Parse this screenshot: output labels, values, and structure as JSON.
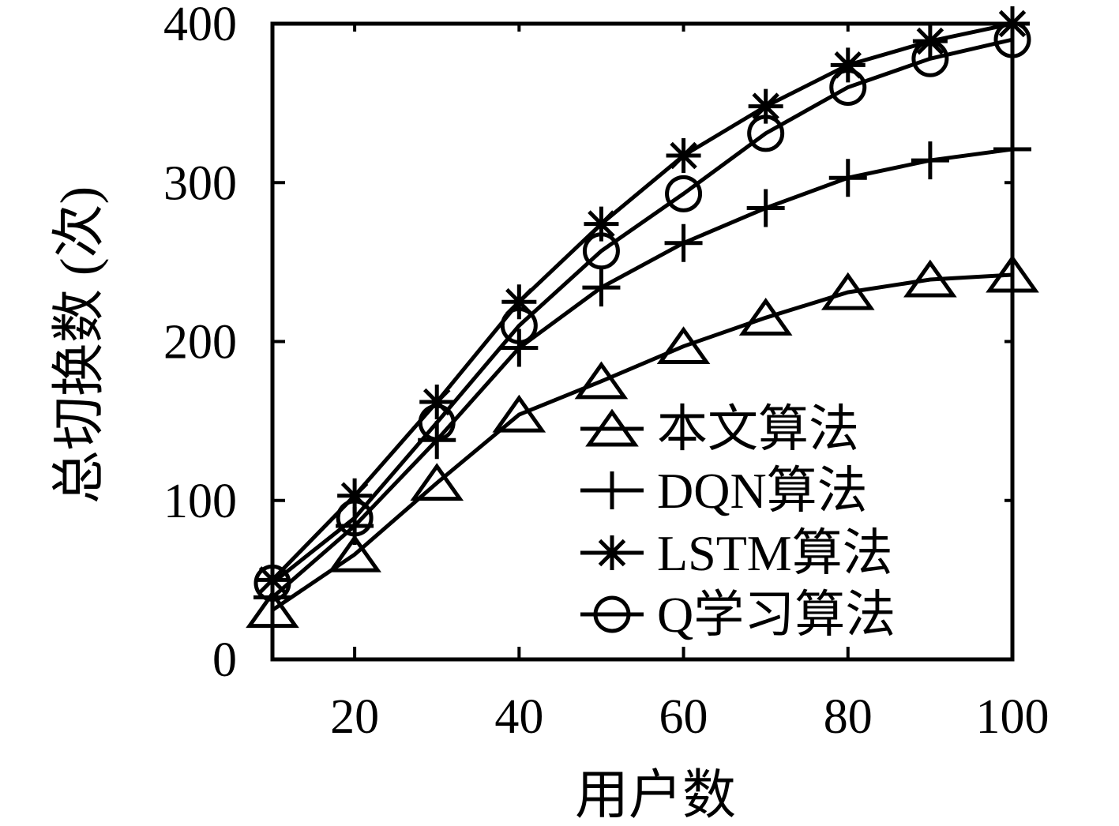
{
  "chart_data": {
    "type": "line",
    "title": "",
    "xlabel": "用户数",
    "ylabel": "总切换数 (次)",
    "x": [
      10,
      20,
      30,
      40,
      50,
      60,
      70,
      80,
      90,
      100
    ],
    "series": [
      {
        "name": "本文算法",
        "marker": "triangle",
        "values": [
          31,
          66,
          111,
          154,
          175,
          197,
          215,
          231,
          239,
          242
        ]
      },
      {
        "name": "DQN算法",
        "marker": "plus",
        "values": [
          39,
          84,
          138,
          196,
          234,
          262,
          284,
          303,
          314,
          321
        ]
      },
      {
        "name": "LSTM算法",
        "marker": "asterisk",
        "values": [
          50,
          103,
          162,
          225,
          274,
          317,
          348,
          374,
          389,
          400
        ]
      },
      {
        "name": "Q学习算法",
        "marker": "circle",
        "values": [
          48,
          89,
          149,
          210,
          257,
          293,
          331,
          360,
          378,
          390
        ]
      }
    ],
    "xlim": [
      10,
      100
    ],
    "ylim": [
      0,
      400
    ],
    "xticks": [
      20,
      40,
      60,
      80,
      100
    ],
    "yticks": [
      0,
      100,
      200,
      300,
      400
    ],
    "grid": false,
    "legend_position": "inside lower-right, no frame",
    "line_color": "#000000",
    "background": "#ffffff"
  }
}
